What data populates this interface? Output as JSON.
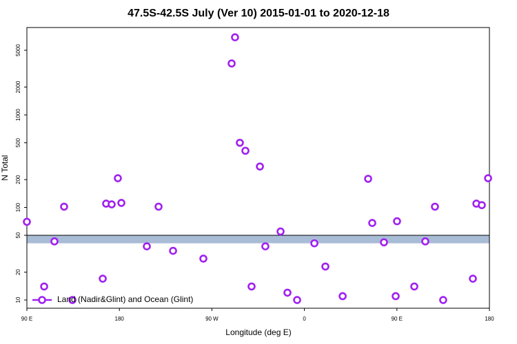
{
  "chart_data": {
    "type": "scatter",
    "title": "47.5S-42.5S July (Ver 10)   2015-01-01 to 2020-12-18",
    "x_label": "Longitude (deg E)",
    "y_label": "N Total",
    "log_y": true,
    "xlim": [
      90,
      540
    ],
    "ylim": [
      8.15,
      8800
    ],
    "xticks": [
      {
        "value": 90,
        "label": "90 E"
      },
      180,
      {
        "value": 270,
        "label": "90 W"
      },
      {
        "value": 360,
        "label": "0"
      },
      {
        "value": 450,
        "label": "90 E"
      },
      {
        "value": 540,
        "label": "180"
      }
    ],
    "yticks": [
      10,
      20,
      50,
      100,
      200,
      500,
      1000,
      2000,
      5000
    ],
    "band": {
      "ylim": [
        41,
        50
      ],
      "color": "#a9bcd6"
    },
    "legend_position": "lower left",
    "series": [
      {
        "name": "Land (Nadir&Glint) and Ocean (Glint)",
        "color": "#a020f0",
        "x": [
          90,
          106.8,
          116.8,
          126.2,
          134.3,
          163.8,
          167.1,
          172.5,
          178.5,
          181.9,
          206.7,
          218.1,
          232.2,
          261.7,
          289.2,
          292.5,
          297.2,
          302.6,
          308.6,
          316.7,
          322,
          336.8,
          343.5,
          352.9,
          369.7,
          380.4,
          397.2,
          422,
          426,
          437.4,
          450.1,
          448.8,
          466.9,
          477.6,
          487,
          495,
          523.9,
          527.3,
          532.6,
          538.7
        ],
        "values": [
          70,
          14,
          43,
          102,
          10,
          17,
          110,
          108,
          207,
          112,
          38,
          102,
          34,
          28,
          3600,
          6900,
          500,
          410,
          14,
          277,
          38,
          55,
          12,
          10,
          41,
          23,
          11,
          204,
          68,
          42,
          71,
          11,
          14,
          43,
          102,
          10,
          17,
          110,
          106,
          207
        ]
      }
    ]
  }
}
